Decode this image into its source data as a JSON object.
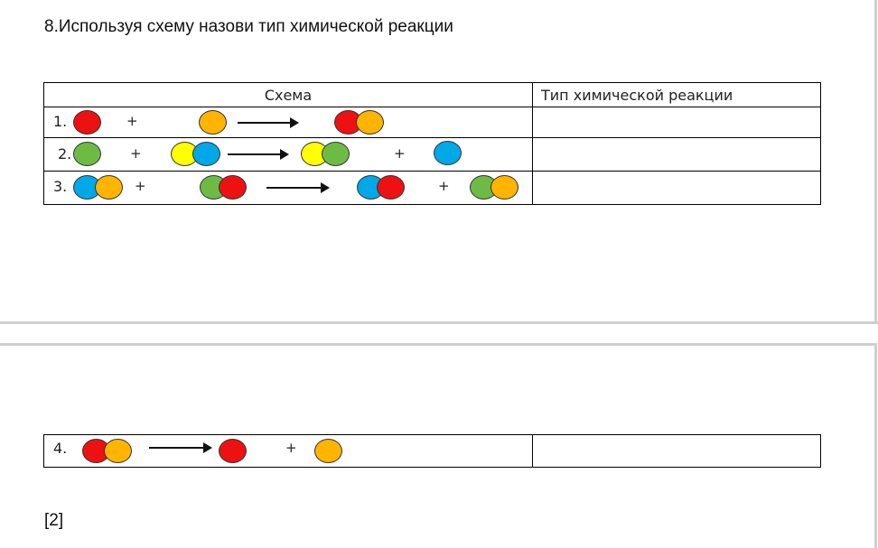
{
  "task": {
    "title": "8.Используя схему назови тип химической реакции",
    "score": "[2]"
  },
  "table": {
    "headers": [
      "Схема",
      "Тип химической реакции"
    ],
    "rows": [
      {
        "number": "1.",
        "answer": ""
      },
      {
        "number": "2.",
        "answer": ""
      },
      {
        "number": "3.",
        "answer": ""
      },
      {
        "number": "4.",
        "answer": ""
      }
    ],
    "plus": "+"
  },
  "colors": {
    "red": "#ee1111",
    "orange": "#ffb400",
    "green": "#6dbb45",
    "yellow": "#ffff00",
    "blue": "#00a8e8"
  }
}
